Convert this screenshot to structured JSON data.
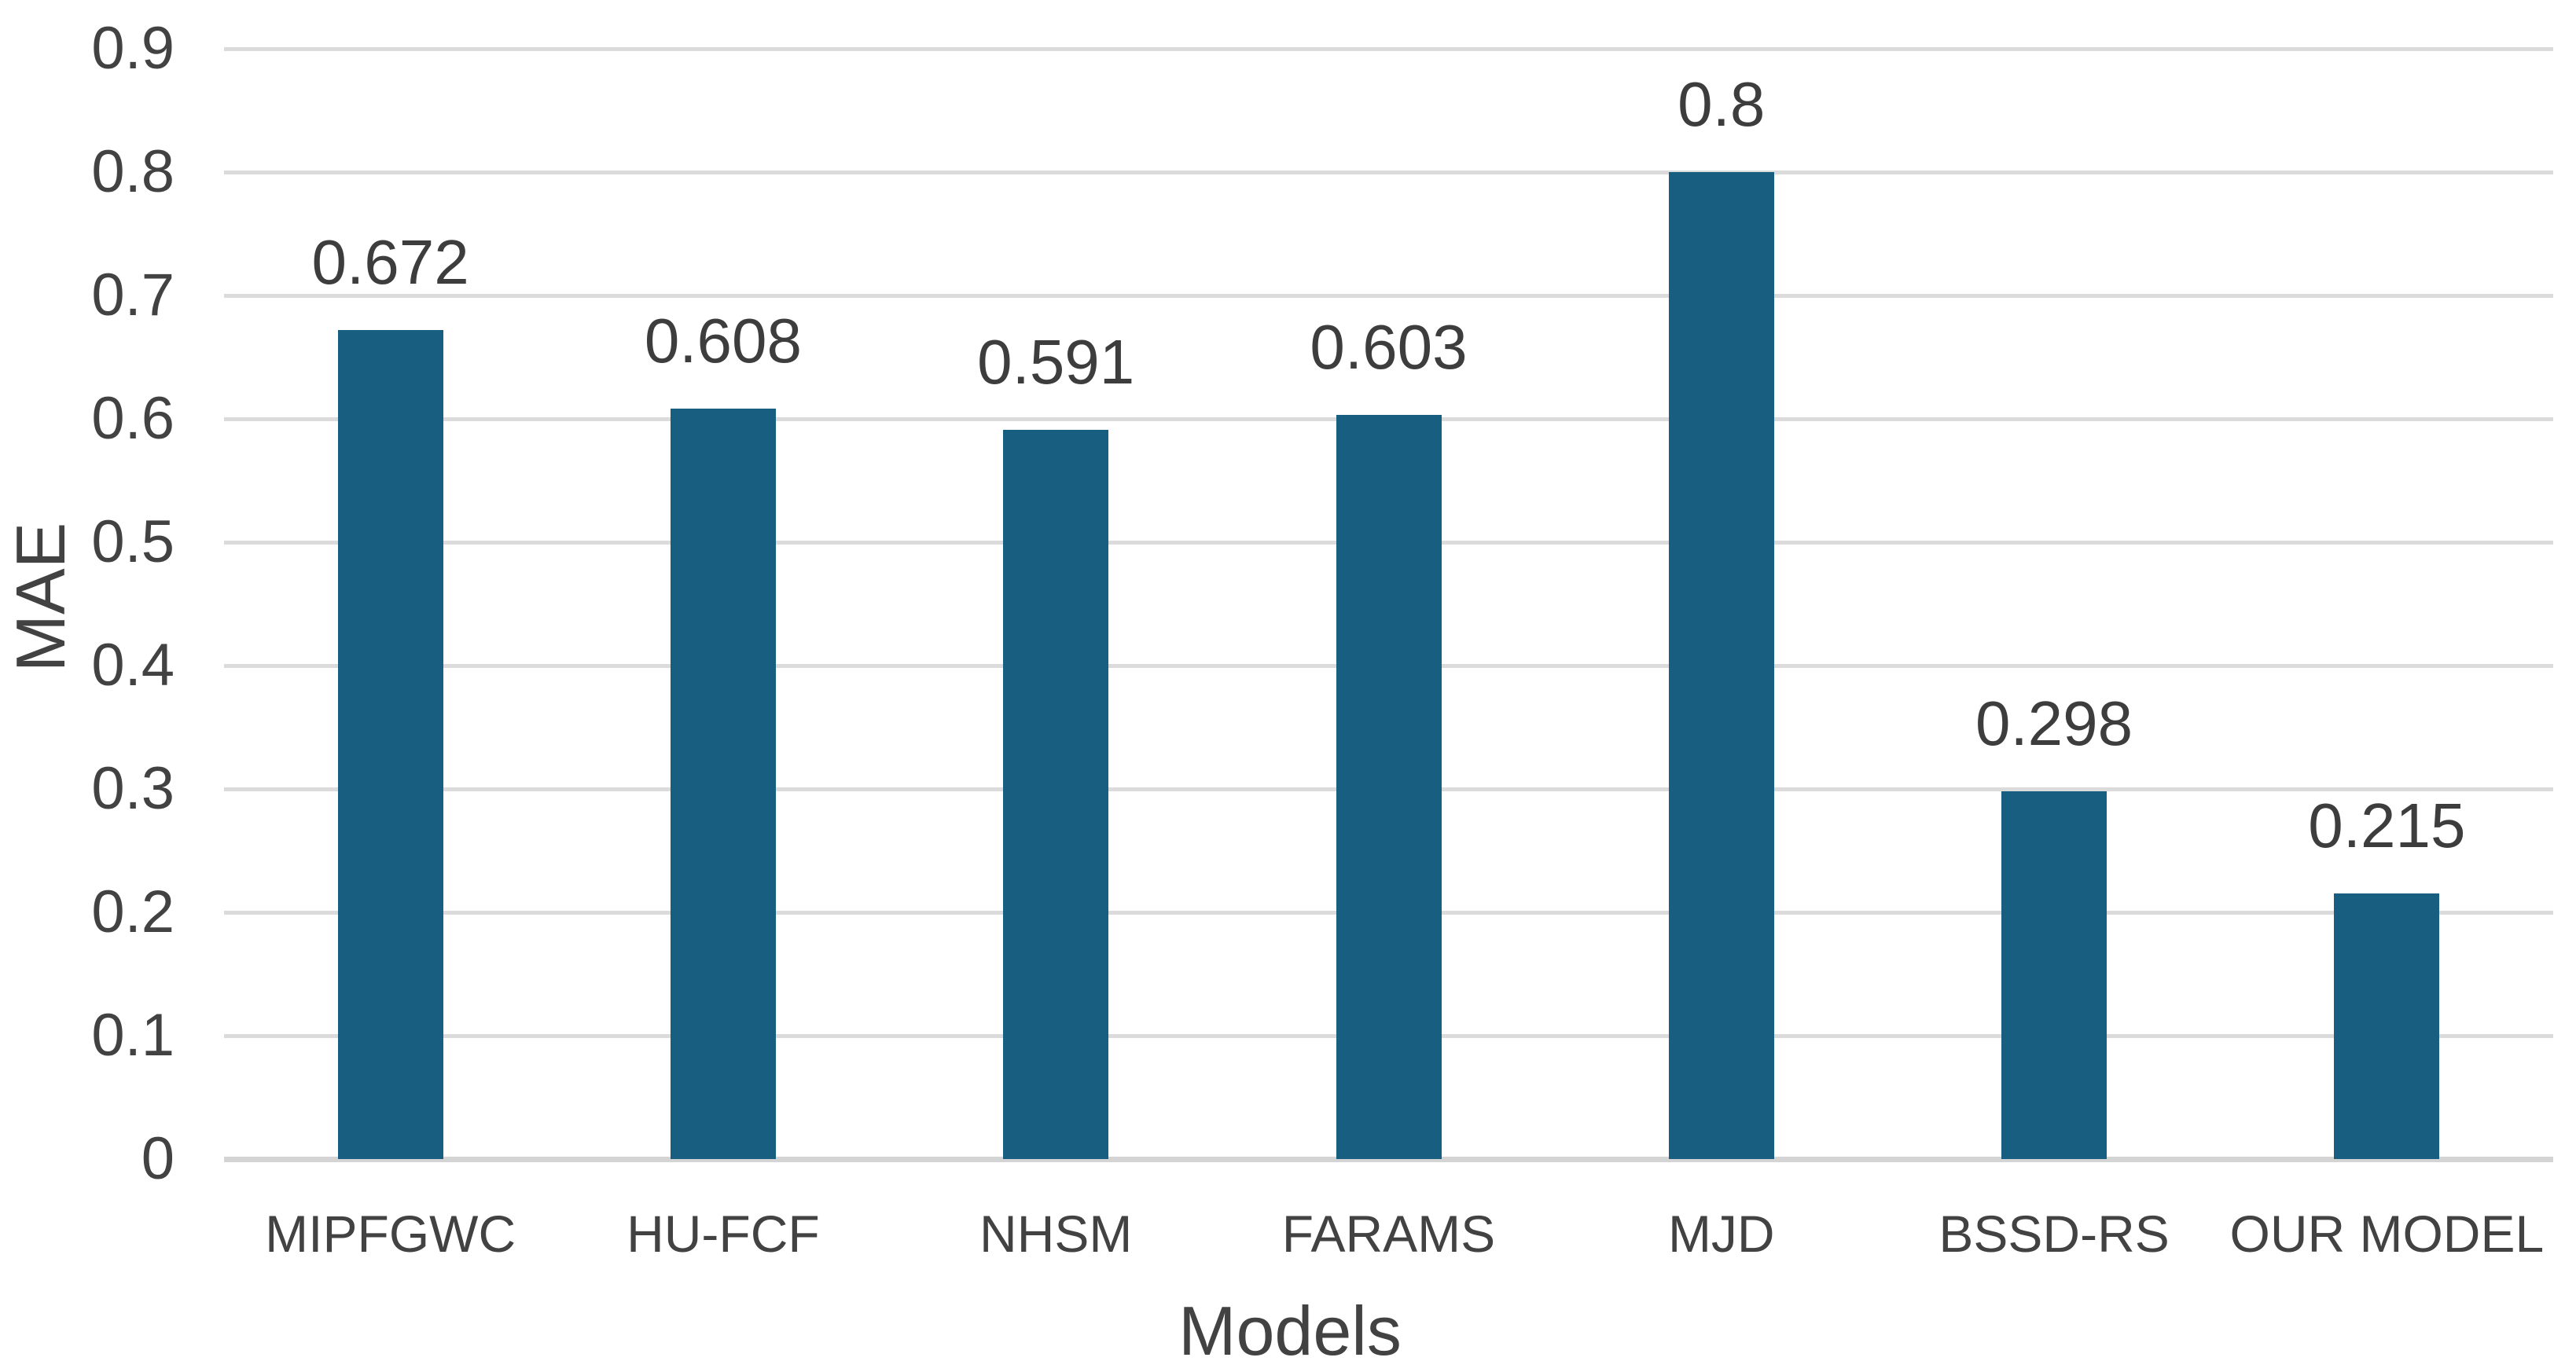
{
  "chart_data": {
    "type": "bar",
    "title": "",
    "xlabel": "Models",
    "ylabel": "MAE",
    "categories": [
      "MIPFGWC",
      "HU-FCF",
      "NHSM",
      "FARAMS",
      "MJD",
      "BSSD-RS",
      "OUR MODEL"
    ],
    "values": [
      0.672,
      0.608,
      0.591,
      0.603,
      0.8,
      0.298,
      0.215
    ],
    "data_labels": [
      "0.672",
      "0.608",
      "0.591",
      "0.603",
      "0.8",
      "0.298",
      "0.215"
    ],
    "ylim": [
      0,
      0.9
    ],
    "ytick_step": 0.1,
    "yticks": [
      "0",
      "0.1",
      "0.2",
      "0.3",
      "0.4",
      "0.5",
      "0.6",
      "0.7",
      "0.8",
      "0.9"
    ],
    "grid": "horizontal",
    "legend": "none",
    "bar_color": "#175E81",
    "gridline_color": "#DBDBDB",
    "axis_line_color": "#D4D4D4",
    "label_color": "#3D3D3D"
  }
}
